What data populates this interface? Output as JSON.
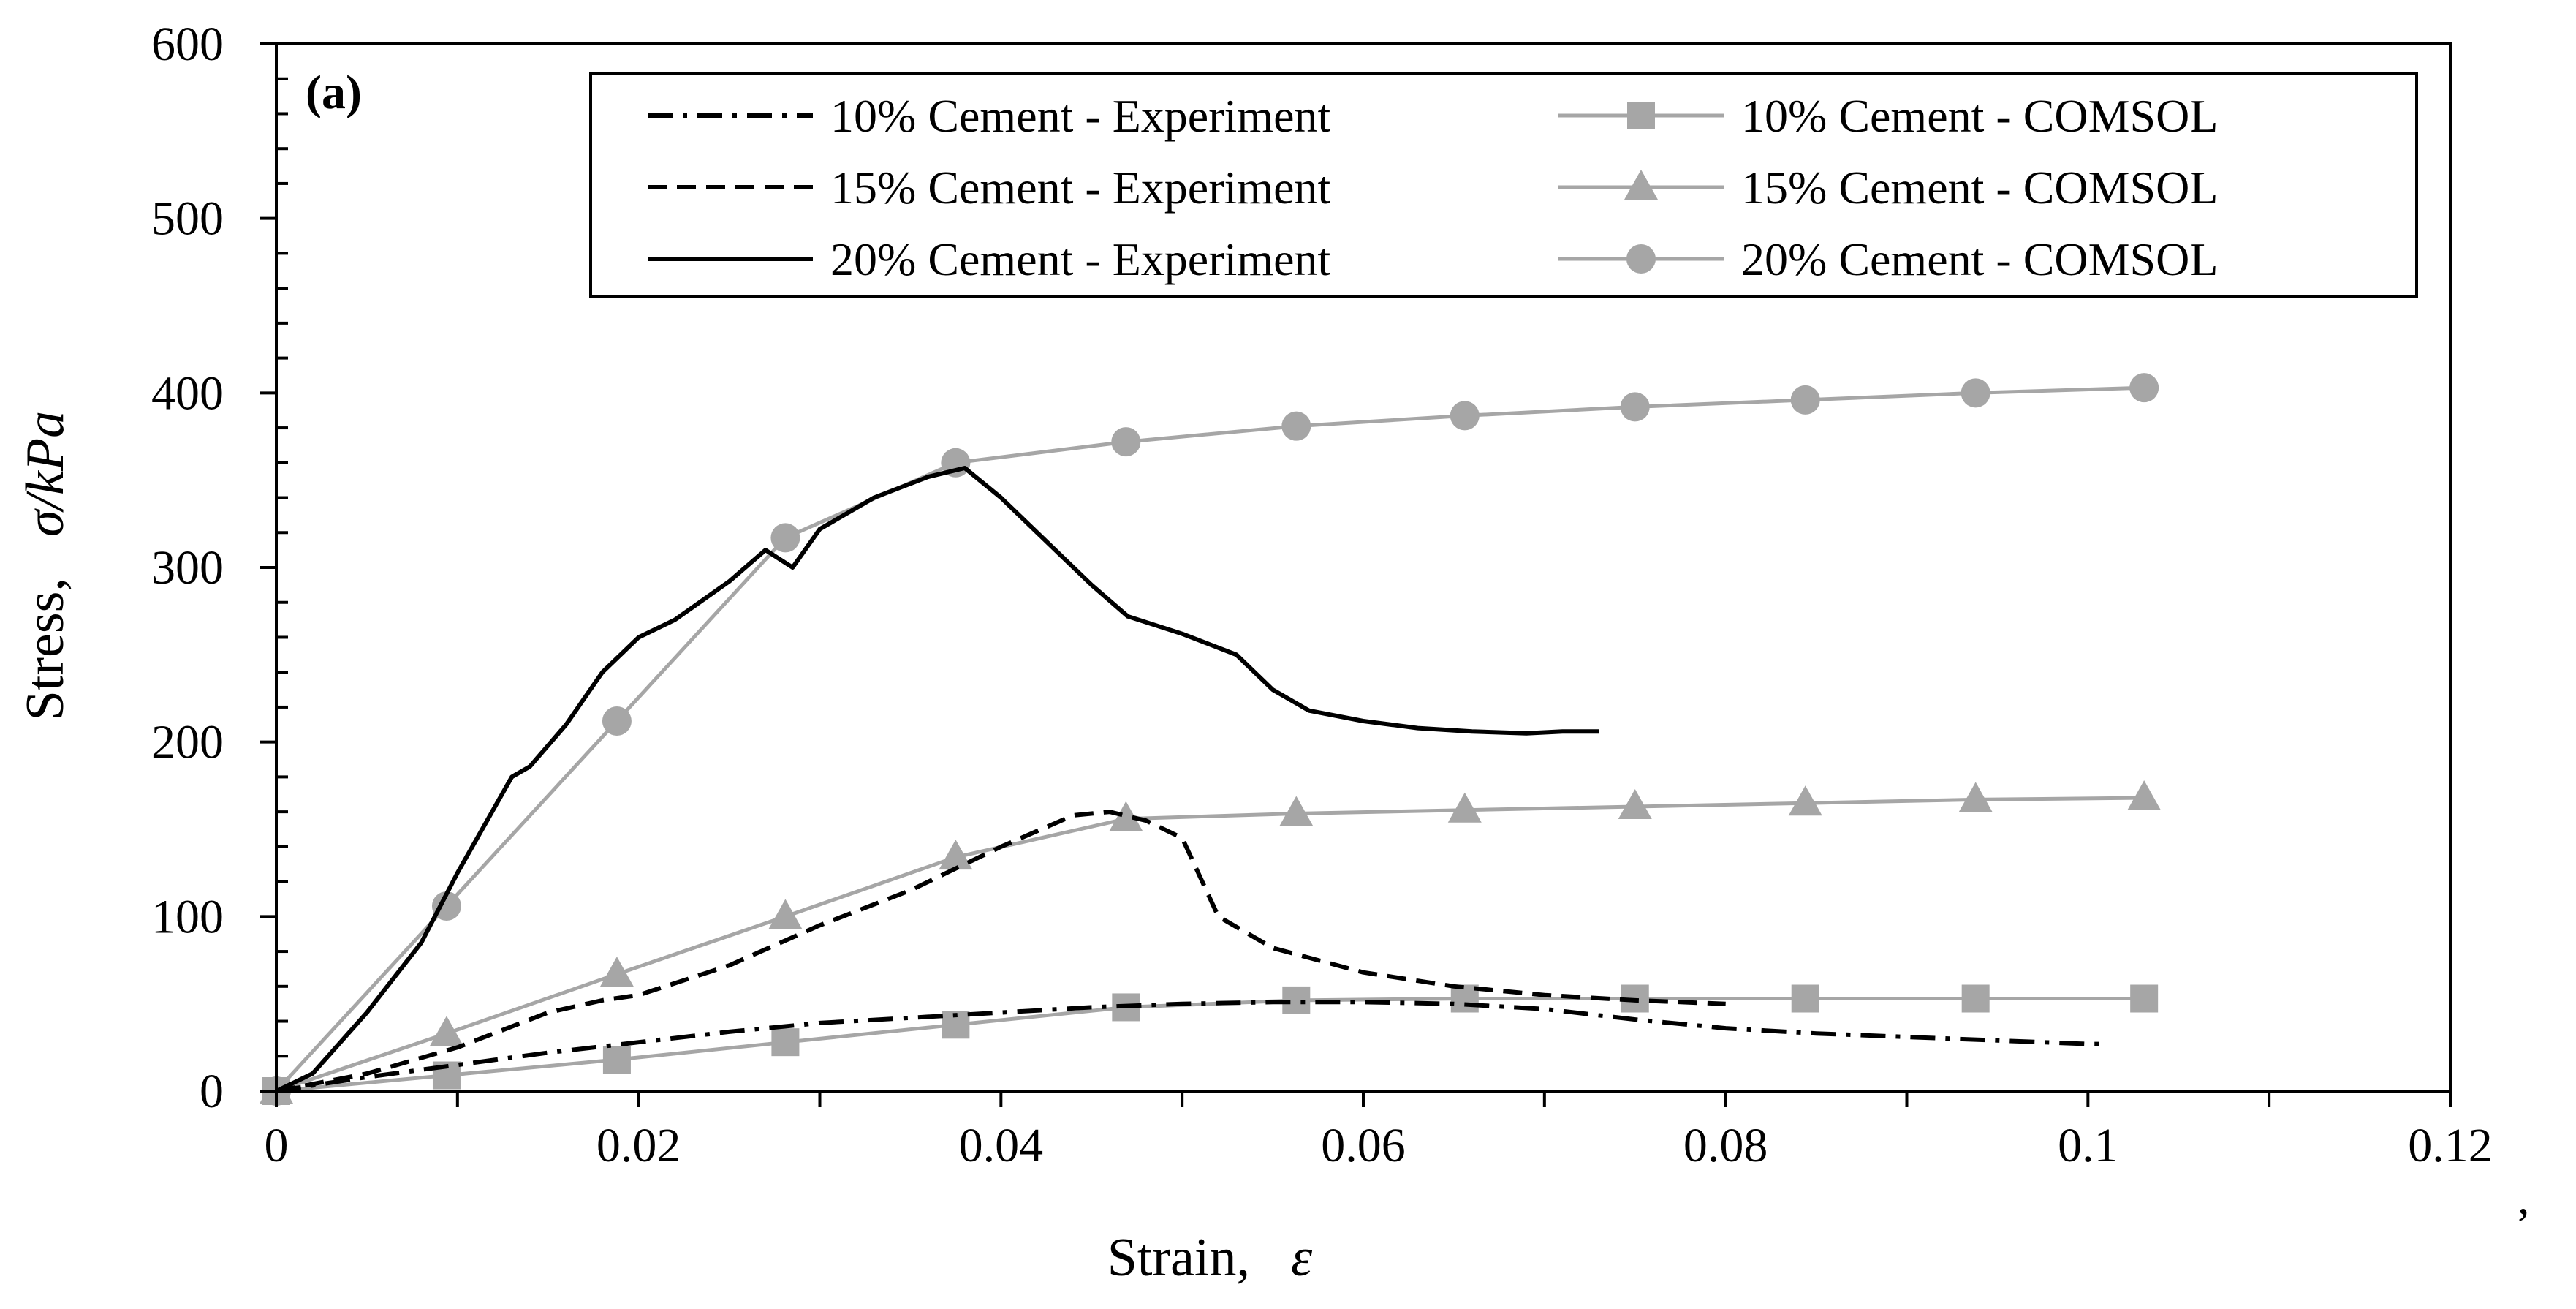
{
  "chart_data": {
    "type": "line",
    "panel_label": "(a)",
    "xlabel": "Strain,",
    "xlabel_symbol": "ε",
    "ylabel": "Stress,",
    "ylabel_symbol": "σ/kPa",
    "trailing_mark": ",",
    "xlim": [
      0,
      0.12
    ],
    "ylim": [
      0,
      600
    ],
    "x_ticks": [
      0,
      0.02,
      0.04,
      0.06,
      0.08,
      0.1,
      0.12
    ],
    "x_tick_labels": [
      "0",
      "0.02",
      "0.04",
      "0.06",
      "0.08",
      "0.1",
      "0.12"
    ],
    "y_ticks": [
      0,
      100,
      200,
      300,
      400,
      500,
      600
    ],
    "y_tick_labels": [
      "0",
      "100",
      "200",
      "300",
      "400",
      "500",
      "600"
    ],
    "grid": false,
    "legend_position": "top-right",
    "colors": {
      "experiment": "#000000",
      "comsol": "#a6a6a6"
    },
    "series": [
      {
        "name": "10% Cement - Experiment",
        "style": "dashdot",
        "marker": "none",
        "points": [
          [
            0,
            0
          ],
          [
            0.005,
            8
          ],
          [
            0.01,
            15
          ],
          [
            0.015,
            22
          ],
          [
            0.02,
            28
          ],
          [
            0.025,
            34
          ],
          [
            0.03,
            39
          ],
          [
            0.035,
            42
          ],
          [
            0.04,
            45
          ],
          [
            0.045,
            48
          ],
          [
            0.05,
            50
          ],
          [
            0.055,
            51
          ],
          [
            0.06,
            51
          ],
          [
            0.065,
            50
          ],
          [
            0.07,
            47
          ],
          [
            0.075,
            41
          ],
          [
            0.08,
            36
          ],
          [
            0.085,
            33
          ],
          [
            0.09,
            31
          ],
          [
            0.095,
            29
          ],
          [
            0.1,
            27
          ],
          [
            0.101,
            27
          ]
        ]
      },
      {
        "name": "15% Cement - Experiment",
        "style": "dashed",
        "marker": "none",
        "points": [
          [
            0,
            0
          ],
          [
            0.005,
            10
          ],
          [
            0.01,
            25
          ],
          [
            0.015,
            45
          ],
          [
            0.018,
            52
          ],
          [
            0.02,
            55
          ],
          [
            0.025,
            72
          ],
          [
            0.03,
            95
          ],
          [
            0.035,
            115
          ],
          [
            0.04,
            140
          ],
          [
            0.044,
            158
          ],
          [
            0.046,
            160
          ],
          [
            0.048,
            155
          ],
          [
            0.05,
            145
          ],
          [
            0.052,
            100
          ],
          [
            0.055,
            82
          ],
          [
            0.06,
            68
          ],
          [
            0.065,
            60
          ],
          [
            0.07,
            55
          ],
          [
            0.075,
            52
          ],
          [
            0.08,
            50
          ]
        ]
      },
      {
        "name": "20% Cement - Experiment",
        "style": "solid",
        "marker": "none",
        "points": [
          [
            0,
            0
          ],
          [
            0.002,
            10
          ],
          [
            0.005,
            45
          ],
          [
            0.008,
            85
          ],
          [
            0.01,
            125
          ],
          [
            0.013,
            180
          ],
          [
            0.014,
            186
          ],
          [
            0.016,
            210
          ],
          [
            0.018,
            240
          ],
          [
            0.02,
            260
          ],
          [
            0.022,
            270
          ],
          [
            0.025,
            292
          ],
          [
            0.027,
            310
          ],
          [
            0.0285,
            300
          ],
          [
            0.03,
            322
          ],
          [
            0.033,
            340
          ],
          [
            0.036,
            352
          ],
          [
            0.038,
            357
          ],
          [
            0.04,
            340
          ],
          [
            0.042,
            320
          ],
          [
            0.045,
            290
          ],
          [
            0.047,
            272
          ],
          [
            0.05,
            262
          ],
          [
            0.053,
            250
          ],
          [
            0.055,
            230
          ],
          [
            0.057,
            218
          ],
          [
            0.06,
            212
          ],
          [
            0.063,
            208
          ],
          [
            0.066,
            206
          ],
          [
            0.069,
            205
          ],
          [
            0.071,
            206
          ],
          [
            0.073,
            206
          ]
        ]
      },
      {
        "name": "10% Cement - COMSOL",
        "style": "solid",
        "marker": "square",
        "points": [
          [
            0,
            0
          ],
          [
            0.0094,
            9
          ],
          [
            0.0188,
            18
          ],
          [
            0.0281,
            28
          ],
          [
            0.0375,
            38
          ],
          [
            0.0469,
            48
          ],
          [
            0.0563,
            52
          ],
          [
            0.0656,
            53
          ],
          [
            0.075,
            53
          ],
          [
            0.0844,
            53
          ],
          [
            0.0938,
            53
          ],
          [
            0.1031,
            53
          ]
        ]
      },
      {
        "name": "15% Cement - COMSOL",
        "style": "solid",
        "marker": "triangle",
        "points": [
          [
            0,
            0
          ],
          [
            0.0094,
            33
          ],
          [
            0.0188,
            67
          ],
          [
            0.0281,
            100
          ],
          [
            0.0375,
            134
          ],
          [
            0.0469,
            156
          ],
          [
            0.0563,
            159
          ],
          [
            0.0656,
            161
          ],
          [
            0.075,
            163
          ],
          [
            0.0844,
            165
          ],
          [
            0.0938,
            167
          ],
          [
            0.1031,
            168
          ]
        ]
      },
      {
        "name": "20% Cement - COMSOL",
        "style": "solid",
        "marker": "circle",
        "points": [
          [
            0,
            0
          ],
          [
            0.0094,
            106
          ],
          [
            0.0188,
            212
          ],
          [
            0.0281,
            317
          ],
          [
            0.0375,
            360
          ],
          [
            0.0469,
            372
          ],
          [
            0.0563,
            381
          ],
          [
            0.0656,
            387
          ],
          [
            0.075,
            392
          ],
          [
            0.0844,
            396
          ],
          [
            0.0938,
            400
          ],
          [
            0.1031,
            403
          ]
        ]
      }
    ]
  }
}
